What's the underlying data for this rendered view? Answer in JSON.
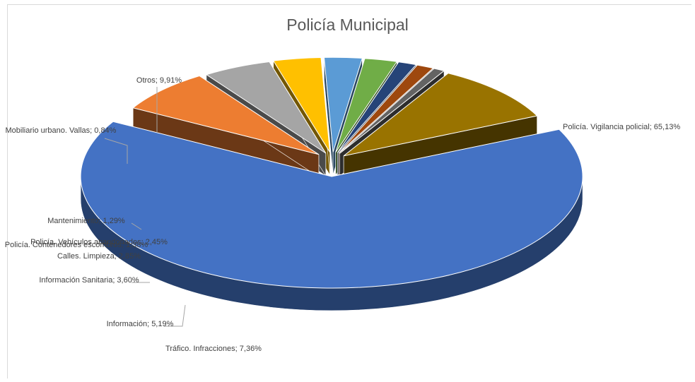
{
  "chart_data": {
    "type": "pie",
    "title": "Policía Municipal",
    "slices": [
      {
        "label": "Policía. Vigilancia policial",
        "value": 65.13,
        "text": "Policía. Vigilancia policial; 65,13%",
        "color": "#4472c4"
      },
      {
        "label": "Tráfico. Infracciones",
        "value": 7.36,
        "text": "Tráfico. Infracciones; 7,36%",
        "color": "#ed7d31"
      },
      {
        "label": "Información",
        "value": 5.19,
        "text": "Información; 5,19%",
        "color": "#a5a5a5"
      },
      {
        "label": "Información Sanitaria",
        "value": 3.6,
        "text": "Información Sanitaria; 3,60%",
        "color": "#ffc000"
      },
      {
        "label": "Calles. Limpieza",
        "value": 2.85,
        "text": "Calles. Limpieza; 2,85%",
        "color": "#5b9bd5"
      },
      {
        "label": "Policía. Vehículos abandonados",
        "value": 2.45,
        "text": "Policía. Vehículos abandonados; 2,45%",
        "color": "#70ad47"
      },
      {
        "label": "Policía. Contenedores escombros",
        "value": 1.38,
        "text": "Policía. Contenedores escombros; 1,38%",
        "color": "#264478"
      },
      {
        "label": "Mantenimiento",
        "value": 1.29,
        "text": "Mantenimiento; 1,29%",
        "color": "#9e480e"
      },
      {
        "label": "Mobiliario urbano. Vallas",
        "value": 0.84,
        "text": "Mobiliario urbano. Vallas; 0,84%",
        "color": "#636363"
      },
      {
        "label": "Otros",
        "value": 9.91,
        "text": "Otros; 9,91%",
        "color": "#997300"
      }
    ]
  }
}
